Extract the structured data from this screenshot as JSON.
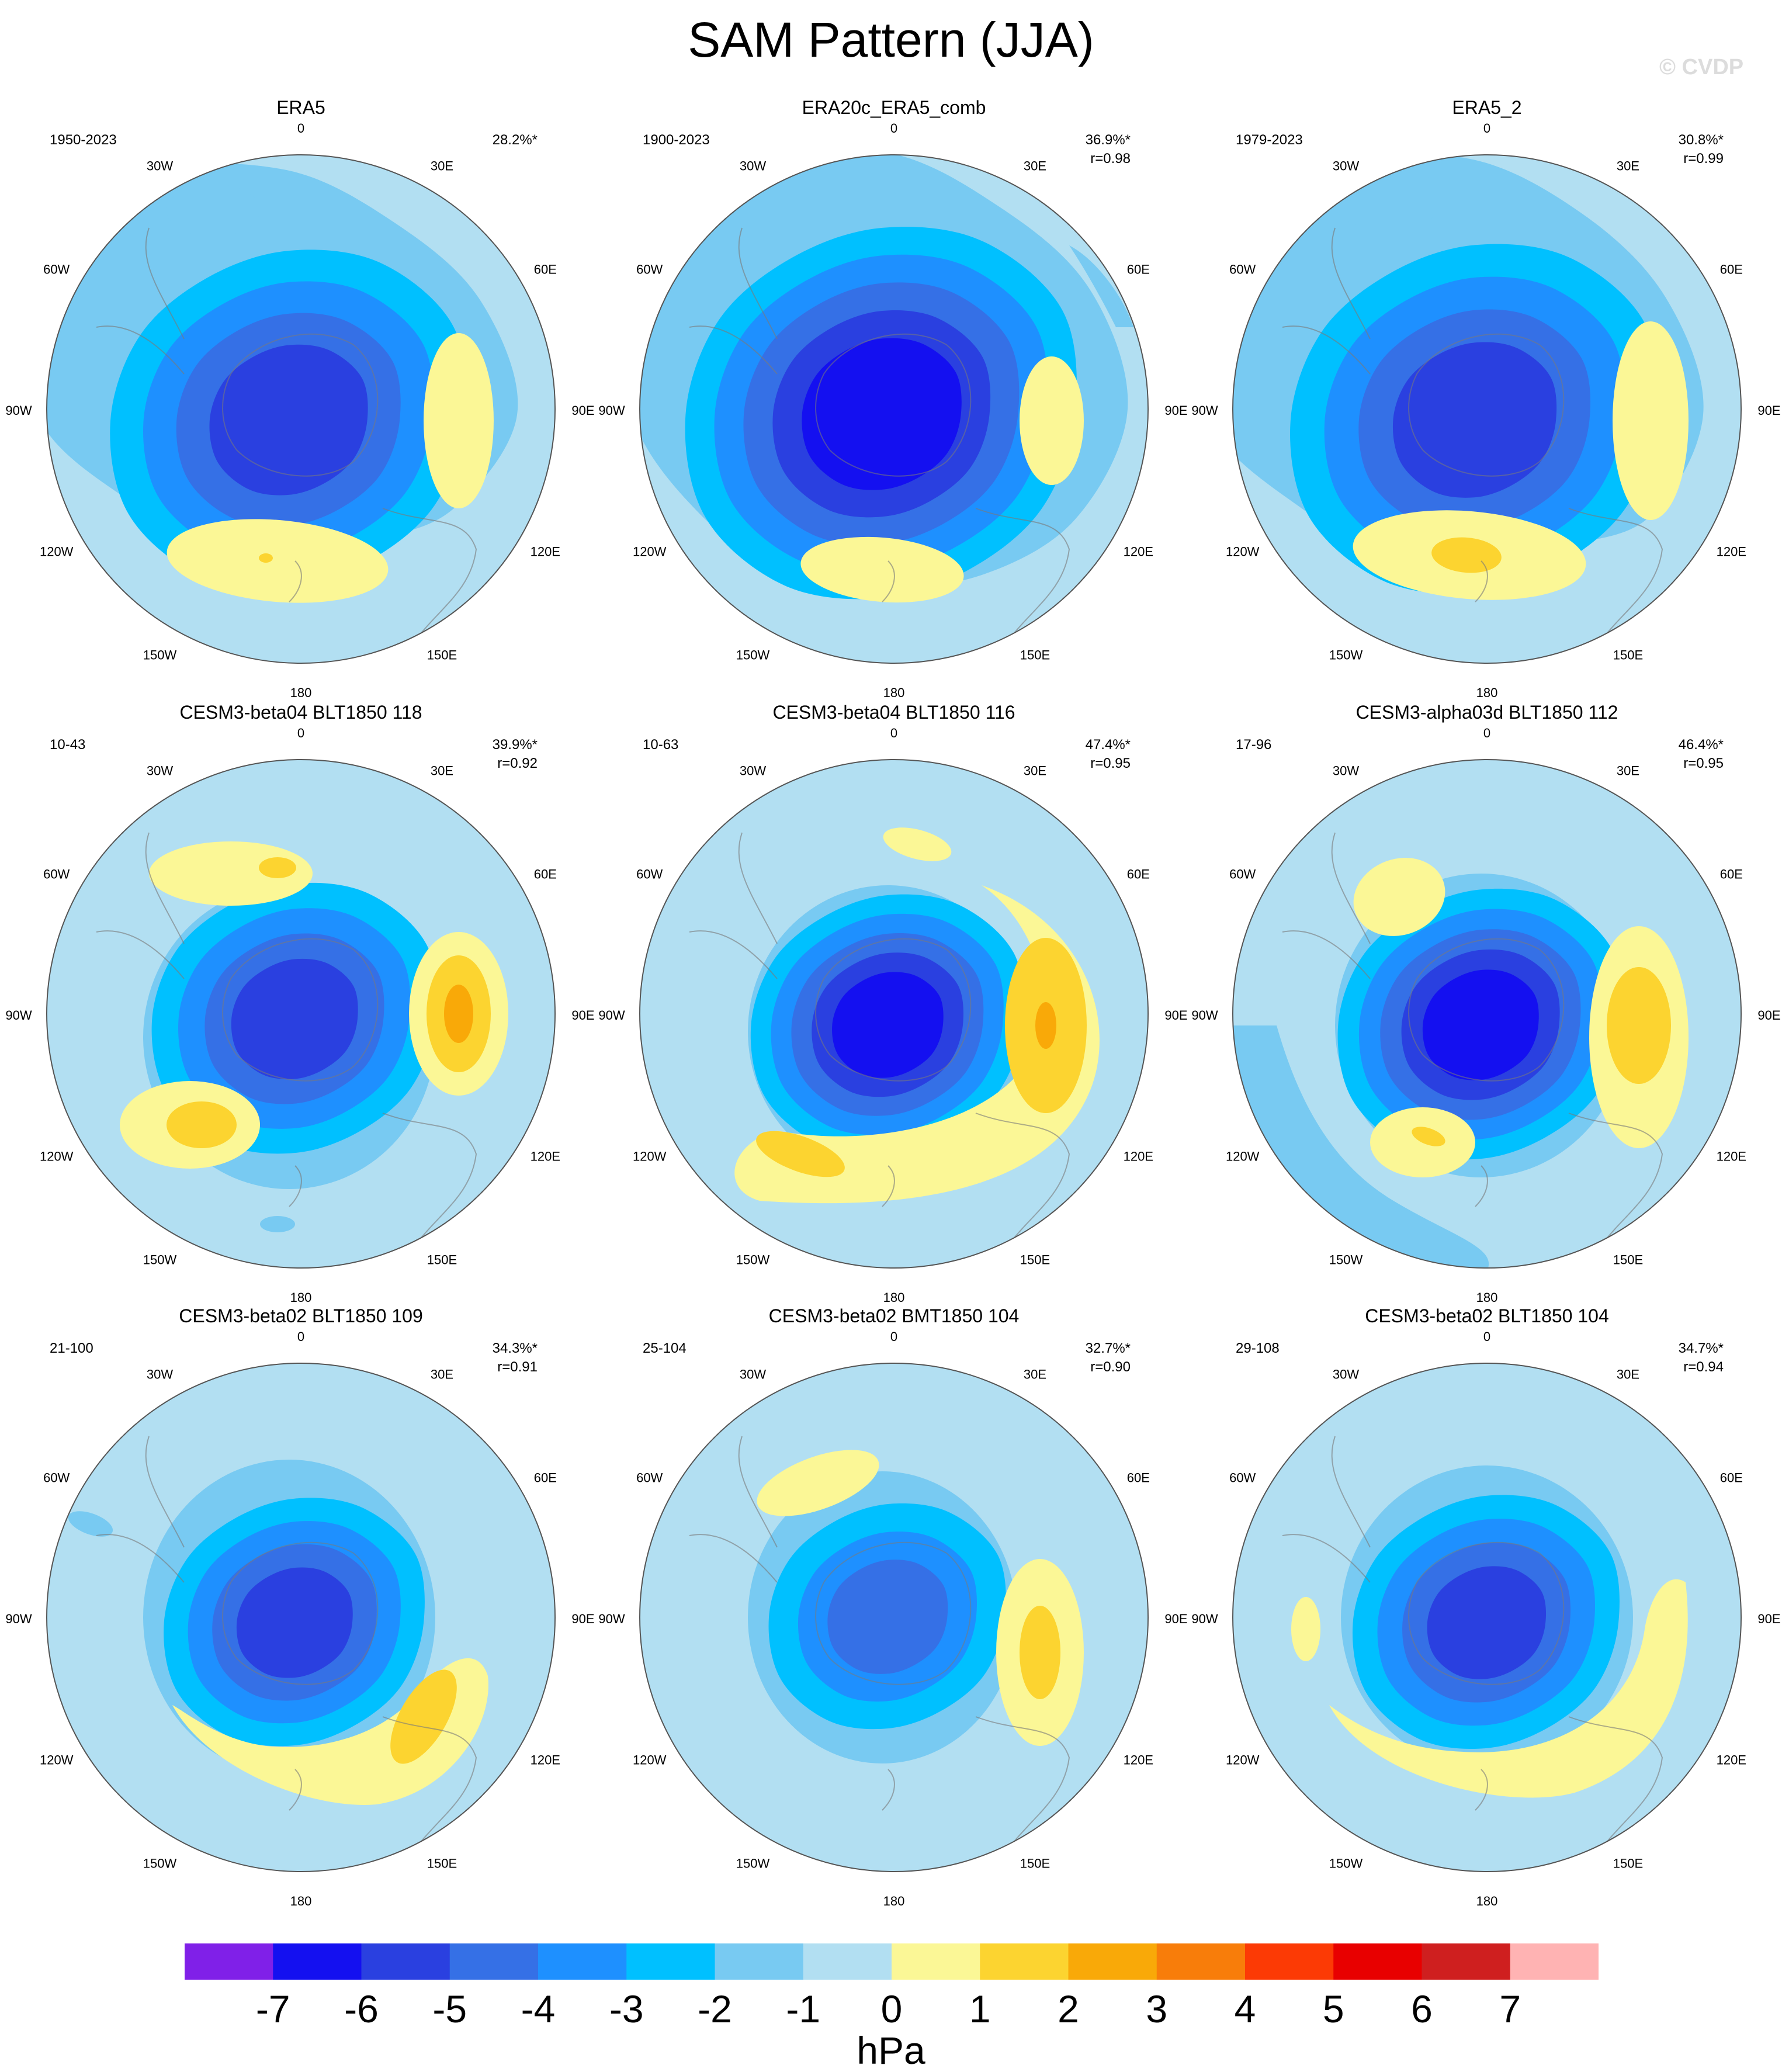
{
  "title": "SAM Pattern (JJA)",
  "watermark": "© CVDP",
  "longitude_labels": {
    "top": "0",
    "bottom": "180",
    "upper_left": "30W",
    "upper_right": "30E",
    "left_upper": "60W",
    "right_upper": "60E",
    "left": "90W",
    "right": "90E",
    "left_lower": "120W",
    "right_lower": "120E",
    "lower_left": "150W",
    "lower_right": "150E"
  },
  "panels": [
    {
      "title": "ERA5",
      "years": "1950-2023",
      "pct": "28.2%*",
      "r": ""
    },
    {
      "title": "ERA20c_ERA5_comb",
      "years": "1900-2023",
      "pct": "36.9%*",
      "r": "r=0.98"
    },
    {
      "title": "ERA5_2",
      "years": "1979-2023",
      "pct": "30.8%*",
      "r": "r=0.99"
    },
    {
      "title": "CESM3-beta04 BLT1850 118",
      "years": "10-43",
      "pct": "39.9%*",
      "r": "r=0.92"
    },
    {
      "title": "CESM3-beta04 BLT1850 116",
      "years": "10-63",
      "pct": "47.4%*",
      "r": "r=0.95"
    },
    {
      "title": "CESM3-alpha03d BLT1850 112",
      "years": "17-96",
      "pct": "46.4%*",
      "r": "r=0.95"
    },
    {
      "title": "CESM3-beta02 BLT1850 109",
      "years": "21-100",
      "pct": "34.3%*",
      "r": "r=0.91"
    },
    {
      "title": "CESM3-beta02 BMT1850 104",
      "years": "25-104",
      "pct": "32.7%*",
      "r": "r=0.90"
    },
    {
      "title": "CESM3-beta02 BLT1850 104",
      "years": "29-108",
      "pct": "34.7%*",
      "r": "r=0.94"
    }
  ],
  "colorbar": {
    "units": "hPa",
    "tick_labels": [
      "-7",
      "-6",
      "-5",
      "-4",
      "-3",
      "-2",
      "-1",
      "0",
      "1",
      "2",
      "3",
      "4",
      "5",
      "6",
      "7"
    ],
    "colors": [
      "#8020e8",
      "#1410f0",
      "#2a40e0",
      "#3570e6",
      "#1e90ff",
      "#00c0ff",
      "#78caf2",
      "#b2dff2",
      "#fbf796",
      "#fcd430",
      "#f9a908",
      "#f87d0a",
      "#fc3a05",
      "#e80000",
      "#cf1f1f",
      "#ffb3b3"
    ]
  }
}
